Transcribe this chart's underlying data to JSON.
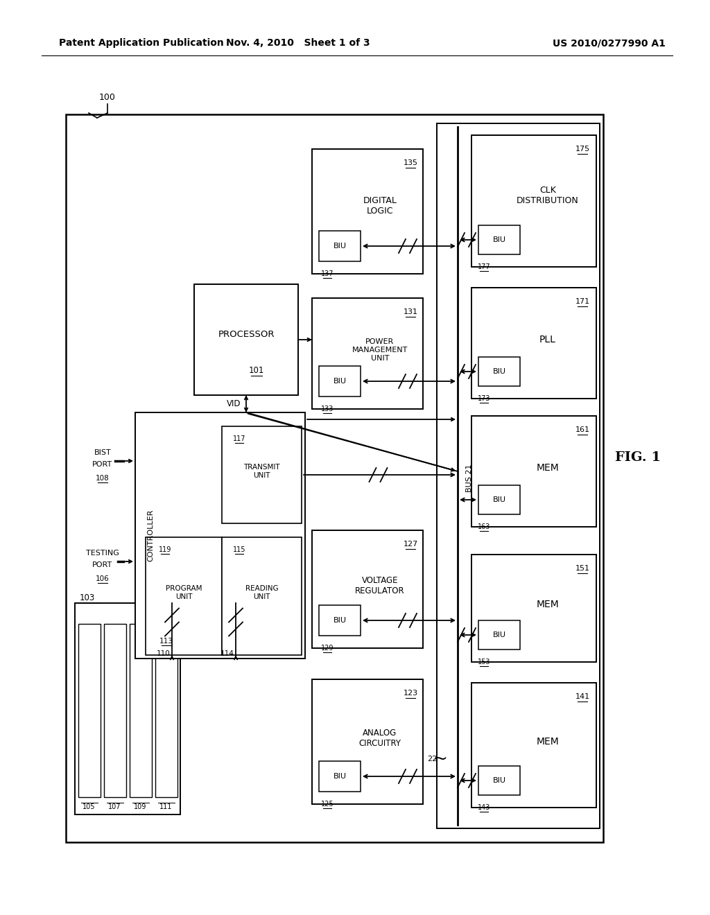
{
  "header_left": "Patent Application Publication",
  "header_mid": "Nov. 4, 2010   Sheet 1 of 3",
  "header_right": "US 2010/0277990 A1",
  "fig_label": "FIG. 1",
  "bg_color": "#ffffff"
}
